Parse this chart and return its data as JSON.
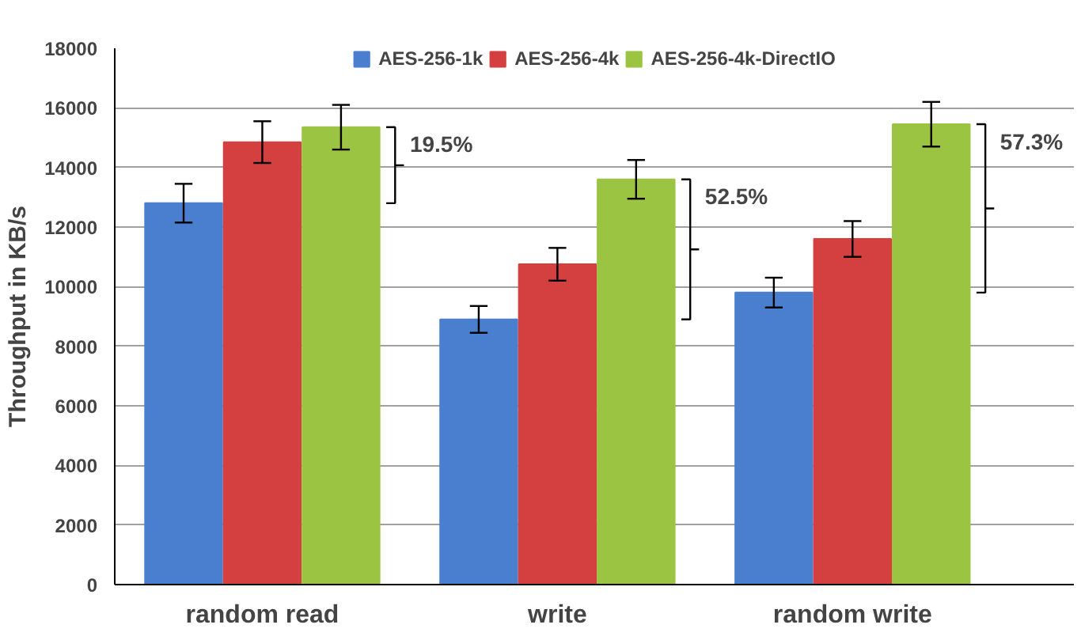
{
  "chart_data": {
    "type": "bar",
    "ylabel": "Throughput in KB/s",
    "categories": [
      "random read",
      "write",
      "random write"
    ],
    "series": [
      {
        "name": "AES-256-1k",
        "color": "#4a7fcf",
        "values": [
          12800,
          8900,
          9800
        ],
        "errors": [
          650,
          450,
          500
        ]
      },
      {
        "name": "AES-256-4k",
        "color": "#d44040",
        "values": [
          14850,
          10750,
          11600
        ],
        "errors": [
          700,
          550,
          600
        ]
      },
      {
        "name": "AES-256-4k-DirectIO",
        "color": "#9bc443",
        "values": [
          15350,
          13600,
          15450
        ],
        "errors": [
          750,
          650,
          750
        ]
      }
    ],
    "annotations": [
      "19.5%",
      "52.5%",
      "57.3%"
    ],
    "ylim": [
      0,
      18000
    ],
    "yticks": [
      0,
      2000,
      4000,
      6000,
      8000,
      10000,
      12000,
      14000,
      16000,
      18000
    ],
    "grid": "y",
    "legend": "top"
  }
}
